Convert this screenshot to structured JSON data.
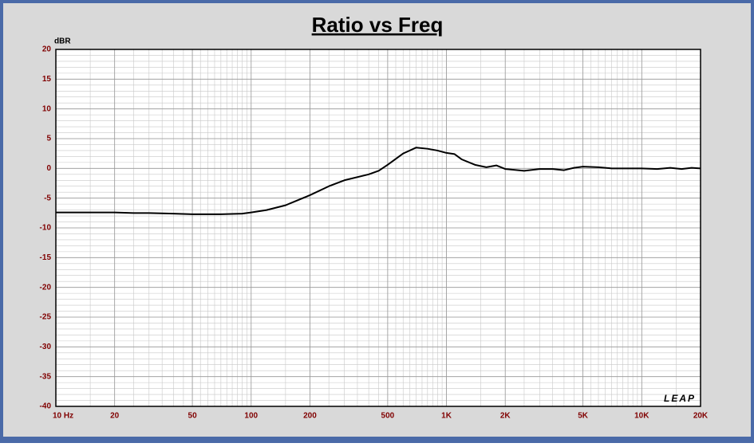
{
  "chart_data": {
    "type": "line",
    "title": "Ratio vs Freq",
    "y_label": "dBR",
    "logo": "LEAP",
    "x": [
      10,
      20,
      25,
      30,
      40,
      50,
      70,
      90,
      100,
      120,
      150,
      200,
      250,
      300,
      400,
      450,
      500,
      600,
      700,
      800,
      900,
      1000,
      1100,
      1200,
      1400,
      1600,
      1800,
      2000,
      2500,
      3000,
      3500,
      4000,
      4500,
      5000,
      6000,
      7000,
      8000,
      10000,
      12000,
      14000,
      16000,
      18000,
      20000
    ],
    "values": [
      -7.4,
      -7.4,
      -7.5,
      -7.5,
      -7.6,
      -7.7,
      -7.7,
      -7.6,
      -7.4,
      -7.0,
      -6.2,
      -4.5,
      -3.0,
      -2.0,
      -1.0,
      -0.4,
      0.6,
      2.5,
      3.5,
      3.3,
      3.0,
      2.6,
      2.4,
      1.5,
      0.6,
      0.2,
      0.5,
      -0.1,
      -0.4,
      -0.1,
      -0.1,
      -0.3,
      0.1,
      0.3,
      0.2,
      0.0,
      0.0,
      0.0,
      -0.1,
      0.1,
      -0.1,
      0.1,
      0.0
    ],
    "color": "#000000",
    "xlim": [
      10,
      20000
    ],
    "ylim": [
      -40,
      20
    ],
    "xlog": true,
    "grid": true,
    "minor_grid": true,
    "xticks": [
      {
        "value": 10,
        "label": "10 Hz"
      },
      20,
      50,
      100,
      200,
      500,
      {
        "value": 1000,
        "label": "1K"
      },
      {
        "value": 2000,
        "label": "2K"
      },
      {
        "value": 5000,
        "label": "5K"
      },
      {
        "value": 10000,
        "label": "10K"
      },
      {
        "value": 20000,
        "label": "20K"
      }
    ],
    "yticks": [
      20,
      15,
      10,
      5,
      0,
      -5,
      -10,
      -15,
      -20,
      -25,
      -30,
      -35,
      -40
    ]
  }
}
